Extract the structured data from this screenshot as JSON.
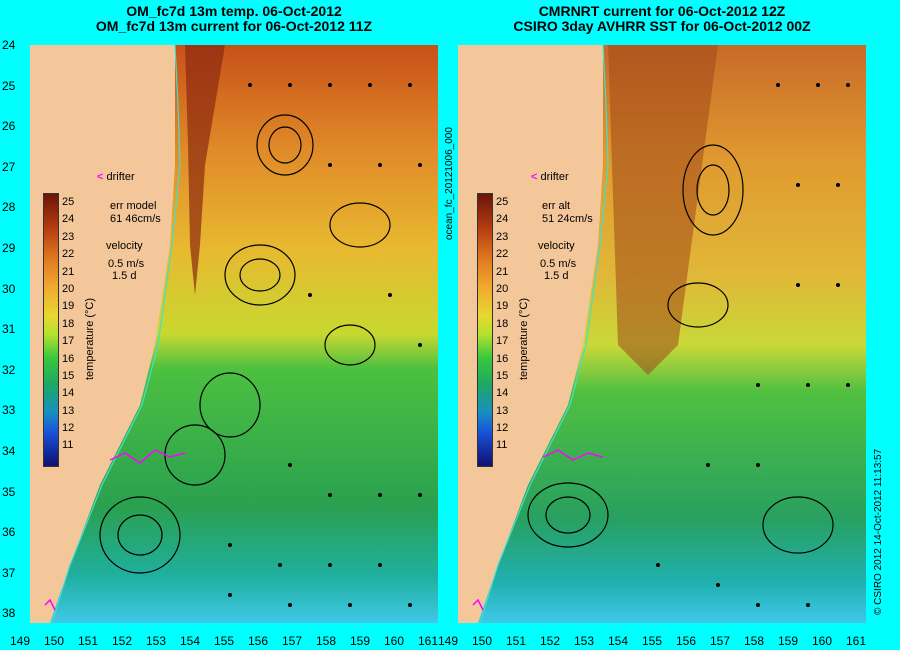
{
  "left_panel": {
    "title_line1": "OM_fc7d 13m temp. 06-Oct-2012",
    "title_line2": "OM_fc7d 13m current for 06-Oct-2012 11Z",
    "err_label": "err model",
    "err_value": "61 46cm/s",
    "velocity_label": "velocity",
    "velocity_scale": "0.5 m/s",
    "velocity_days": "1.5 d"
  },
  "right_panel": {
    "title_line1": "CMRNRT current for 06-Oct-2012 12Z",
    "title_line2": "CSIRO 3day AVHRR SST for 06-Oct-2012 00Z",
    "err_label": "err alt",
    "err_value": "51 24cm/s",
    "velocity_label": "velocity",
    "velocity_scale": "0.5 m/s",
    "velocity_days": "1.5 d"
  },
  "drifter_label": "drifter",
  "colorbar": {
    "ticks": [
      "25",
      "24",
      "23",
      "22",
      "21",
      "20",
      "19",
      "18",
      "17",
      "16",
      "15",
      "14",
      "13",
      "12",
      "11"
    ],
    "unit_label": "temperature (°C)",
    "colors": {
      "high": "#6b1408",
      "mid": "#e8d830",
      "low": "#10106e"
    }
  },
  "latitude_ticks": [
    "24",
    "25",
    "26",
    "27",
    "28",
    "29",
    "30",
    "31",
    "32",
    "33",
    "34",
    "35",
    "36",
    "37",
    "38"
  ],
  "longitude_ticks": [
    "149",
    "150",
    "151",
    "152",
    "153",
    "154",
    "155",
    "156",
    "157",
    "158",
    "159",
    "160",
    "161"
  ],
  "side_text_left": "ocean_fc_20121006_000",
  "side_text_right": "© CSIRO 2012  14-Oct-2012 11:13:57",
  "colors": {
    "background": "#00ffff",
    "land": "#f4c79b",
    "drifter": "#ff00ff",
    "coastline": "#40e0d0"
  }
}
